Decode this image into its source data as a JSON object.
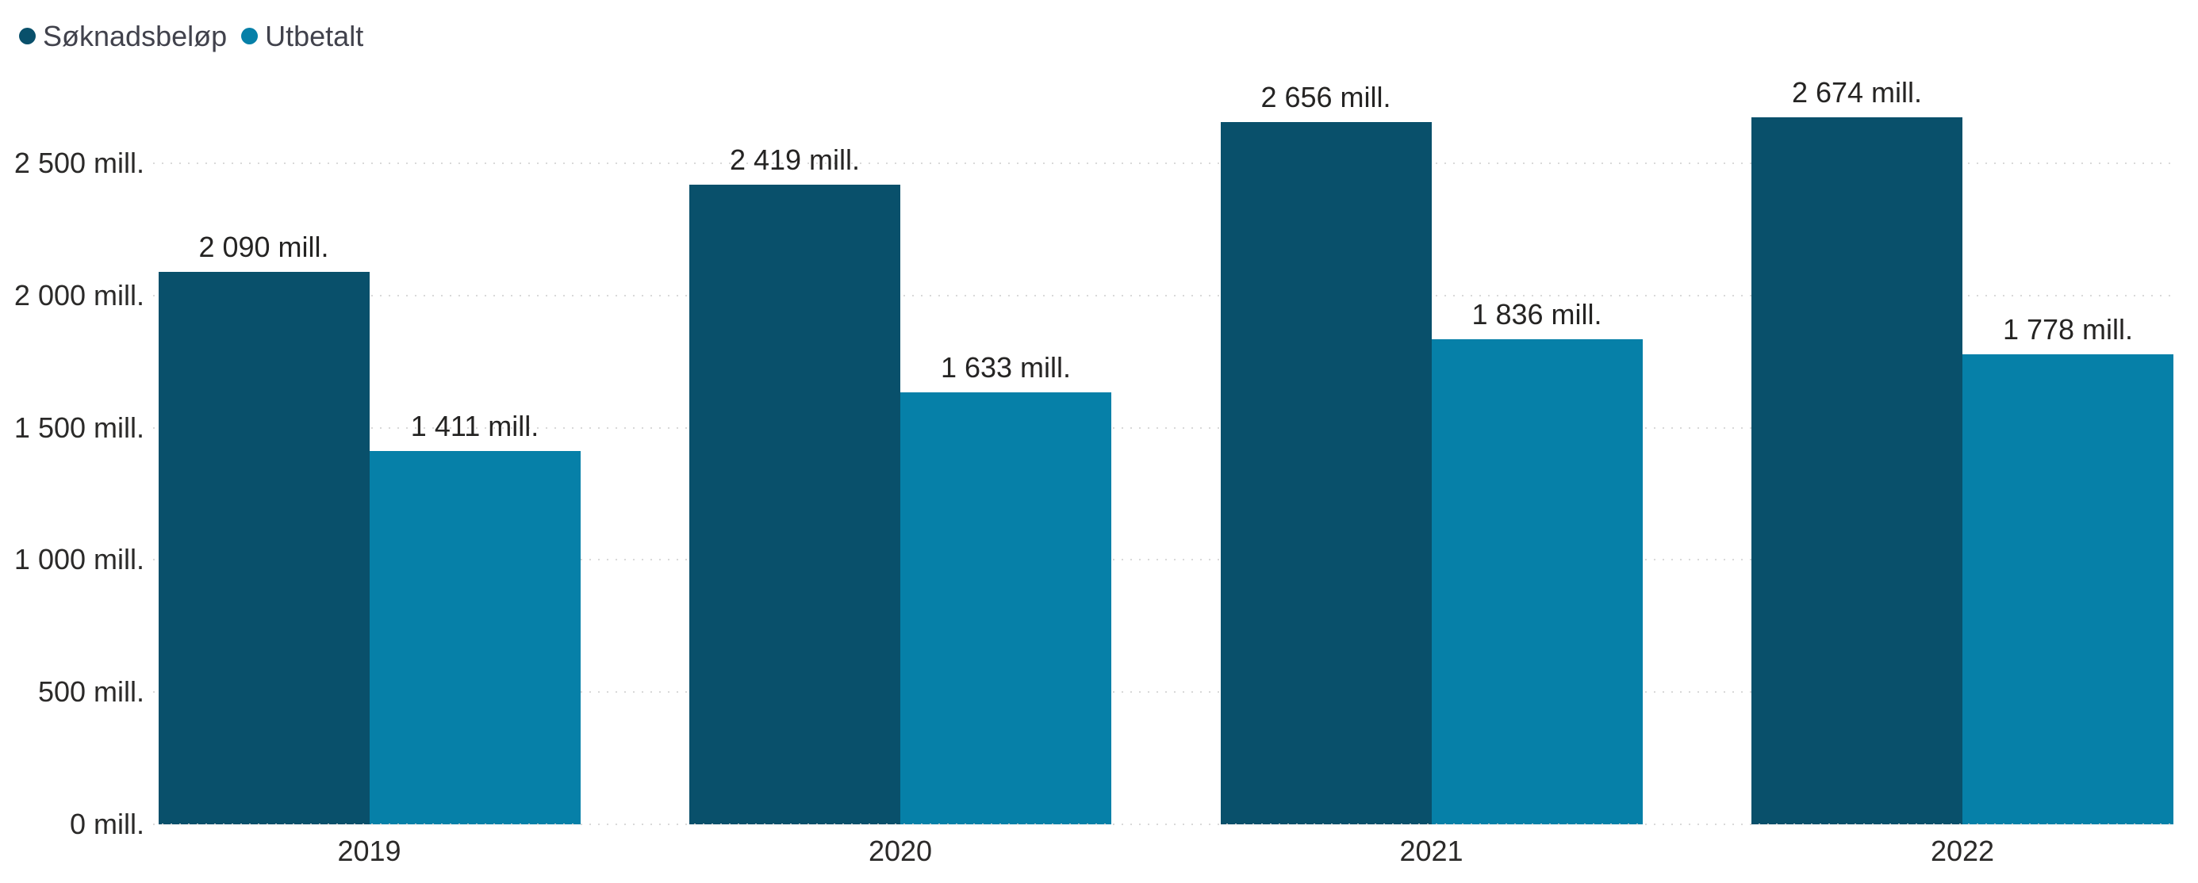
{
  "legend": {
    "position": "top-left",
    "items": [
      {
        "key": "soknadsbelop",
        "label": "Søknadsbeløp",
        "color": "#09506b"
      },
      {
        "key": "utbetalt",
        "label": "Utbetalt",
        "color": "#0680a8"
      }
    ]
  },
  "chart_data": {
    "type": "bar",
    "title": "",
    "categories": [
      "2019",
      "2020",
      "2021",
      "2022"
    ],
    "series": [
      {
        "key": "soknadsbelop",
        "name": "Søknadsbeløp",
        "color": "#09506b",
        "values": [
          2090,
          2419,
          2656,
          2674
        ],
        "labels": [
          "2 090 mill.",
          "2 419 mill.",
          "2 656 mill.",
          "2 674 mill."
        ]
      },
      {
        "key": "utbetalt",
        "name": "Utbetalt",
        "color": "#0680a8",
        "values": [
          1411,
          1633,
          1836,
          1778
        ],
        "labels": [
          "1 411 mill.",
          "1 633 mill.",
          "1 836 mill.",
          "1 778 mill."
        ]
      }
    ],
    "value_suffix": "mill.",
    "y_axis": {
      "min": 0,
      "max": 2500,
      "tick_step": 500,
      "ticks": [
        {
          "value": 0,
          "label": "0 mill."
        },
        {
          "value": 500,
          "label": "500 mill."
        },
        {
          "value": 1000,
          "label": "1 000 mill."
        },
        {
          "value": 1500,
          "label": "1 500 mill."
        },
        {
          "value": 2000,
          "label": "2 000 mill."
        },
        {
          "value": 2500,
          "label": "2 500 mill."
        }
      ]
    },
    "grid": true,
    "grid_color": "#d9d9d9",
    "legend_position": "top-left"
  }
}
